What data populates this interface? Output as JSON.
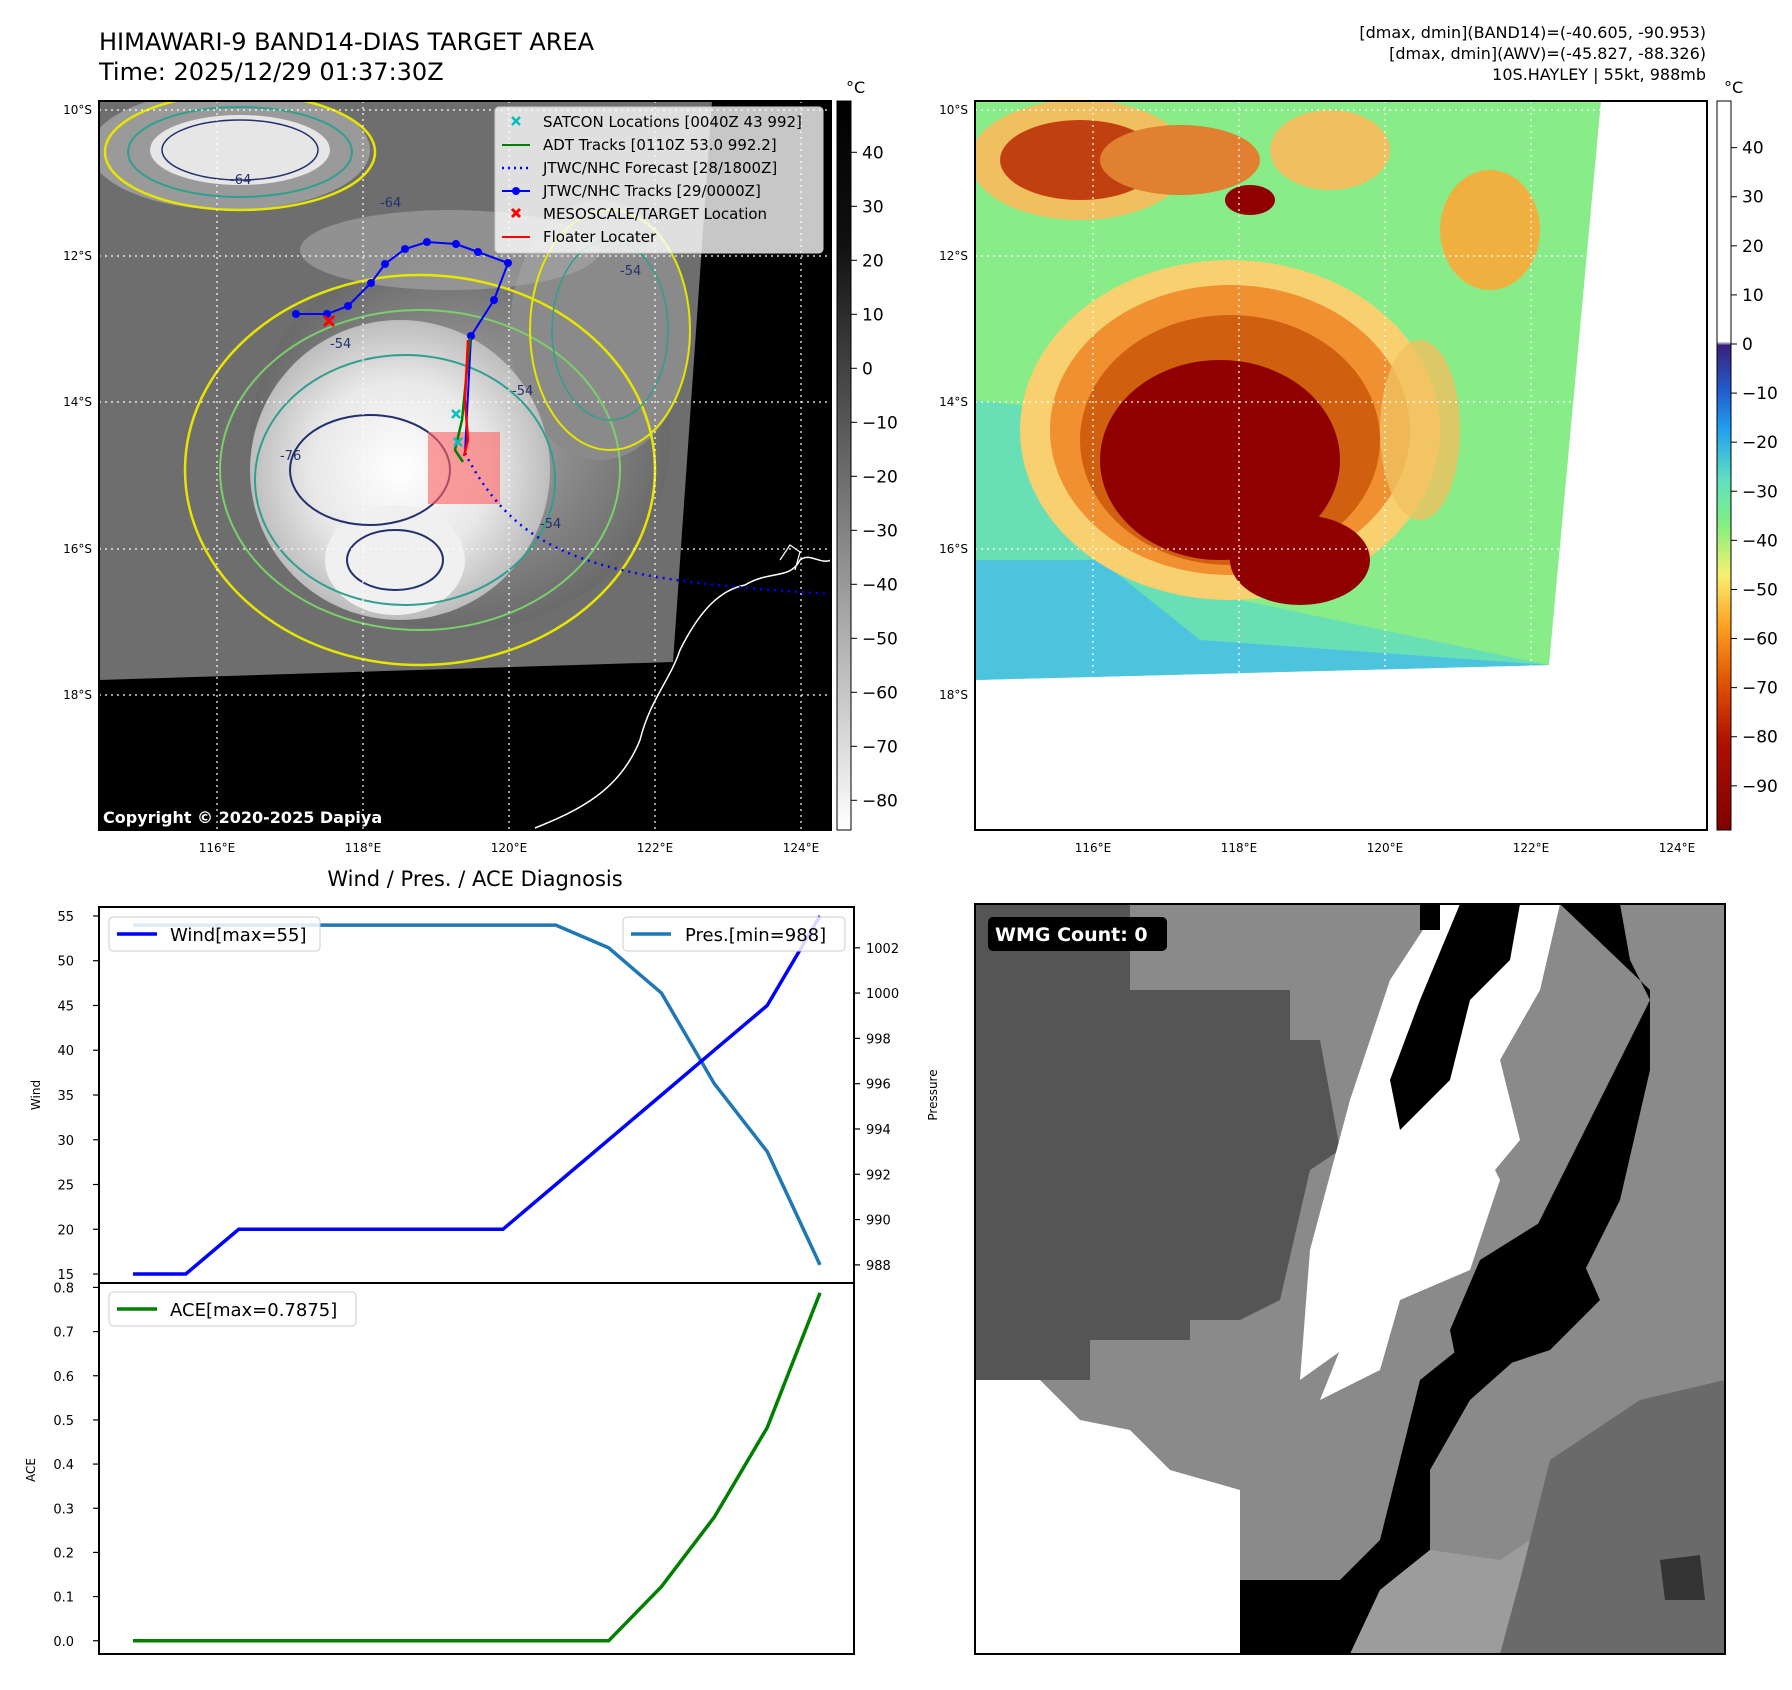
{
  "top_left": {
    "title_line1": "HIMAWARI-9 BAND14-DIAS TARGET AREA",
    "title_line2": "Time: 2025/12/29 01:37:30Z",
    "copyright": "Copyright © 2020-2025 Dapiya",
    "colorbar_unit": "°C",
    "colorbar_ticks": [
      "40",
      "30",
      "20",
      "10",
      "0",
      "−10",
      "−20",
      "−30",
      "−40",
      "−50",
      "−60",
      "−70",
      "−80"
    ],
    "lat_labels": [
      "10°S",
      "12°S",
      "14°S",
      "16°S",
      "18°S"
    ],
    "lon_labels": [
      "116°E",
      "118°E",
      "120°E",
      "122°E",
      "124°E"
    ],
    "contour_labels": [
      "-64",
      "-54",
      "-64",
      "-54",
      "-76",
      "-54",
      "-54"
    ],
    "legend": [
      {
        "label": "SATCON Locations [0040Z 43 992]",
        "color": "#00bfbf",
        "marker": "x"
      },
      {
        "label": "ADT Tracks [0110Z 53.0 992.2]",
        "color": "#008000",
        "marker": "line"
      },
      {
        "label": "JTWC/NHC Forecast [28/1800Z]",
        "color": "#0000ff",
        "marker": "dotted"
      },
      {
        "label": "JTWC/NHC Tracks [29/0000Z]",
        "color": "#0000ff",
        "marker": "line-dot"
      },
      {
        "label": "MESOSCALE/TARGET Location",
        "color": "#ff0000",
        "marker": "x"
      },
      {
        "label": "Floater Locater",
        "color": "#ff0000",
        "marker": "line"
      }
    ]
  },
  "top_right": {
    "info_line1": "[dmax, dmin](BAND14)=(-40.605, -90.953)",
    "info_line2": "[dmax, dmin](AWV)=(-45.827, -88.326)",
    "info_line3": "10S.HAYLEY | 55kt, 988mb",
    "colorbar_unit": "°C",
    "colorbar_ticks": [
      "40",
      "30",
      "20",
      "10",
      "0",
      "−10",
      "−20",
      "−30",
      "−40",
      "−50",
      "−60",
      "−70",
      "−80",
      "−90"
    ],
    "lat_labels": [
      "10°S",
      "12°S",
      "14°S",
      "16°S",
      "18°S"
    ],
    "lon_labels": [
      "116°E",
      "118°E",
      "120°E",
      "122°E",
      "124°E"
    ]
  },
  "bottom_right": {
    "badge": "WMG Count: 0"
  },
  "colors": {
    "wind": "#0000ff",
    "pressure": "#1f77b4",
    "ace": "#008000",
    "cold_top": "#8b0000",
    "legend_bg": "#ffffff"
  },
  "chart_data": [
    {
      "type": "line",
      "title": "Wind / Pres. / ACE Diagnosis",
      "ylabel": "Wind",
      "y2label": "Pressure",
      "ylim": [
        14,
        56
      ],
      "y2lim": [
        987.2,
        1003.8
      ],
      "yticks": [
        "15",
        "20",
        "25",
        "30",
        "35",
        "40",
        "45",
        "50",
        "55"
      ],
      "y2ticks": [
        "988",
        "990",
        "992",
        "994",
        "996",
        "998",
        "1000",
        "1002"
      ],
      "series": [
        {
          "name": "Wind[max=55]",
          "axis": "left",
          "values": [
            15,
            15,
            20,
            20,
            20,
            20,
            20,
            20,
            25,
            30,
            35,
            40,
            45,
            55
          ]
        },
        {
          "name": "Pres.[min=988]",
          "axis": "right",
          "values": [
            1003,
            1003,
            1003,
            1003,
            1003,
            1003,
            1003,
            1003,
            1003,
            1002,
            1000,
            996,
            993,
            988
          ]
        }
      ]
    },
    {
      "type": "line",
      "ylabel": "ACE",
      "ylim": [
        -0.03,
        0.81
      ],
      "yticks": [
        "0.0",
        "0.1",
        "0.2",
        "0.3",
        "0.4",
        "0.5",
        "0.6",
        "0.7",
        "0.8"
      ],
      "series": [
        {
          "name": "ACE[max=0.7875]",
          "values": [
            0,
            0,
            0,
            0,
            0,
            0,
            0,
            0,
            0,
            0,
            0.1225,
            0.28,
            0.4825,
            0.7875
          ]
        }
      ]
    }
  ]
}
